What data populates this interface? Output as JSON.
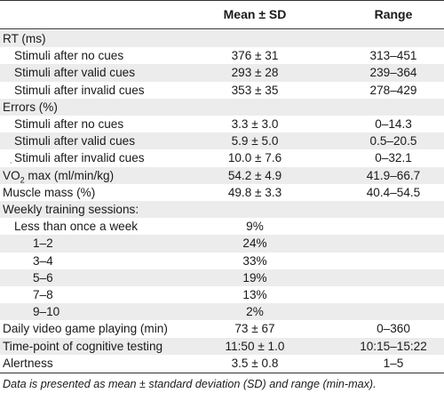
{
  "header": {
    "mean_sd": "Mean ± SD",
    "range": "Range"
  },
  "rows": [
    {
      "label": "RT (ms)",
      "mean": "",
      "range": ""
    },
    {
      "label": "Stimuli after no cues",
      "mean": "376 ± 31",
      "range": "313–451"
    },
    {
      "label": "Stimuli after valid cues",
      "mean": "293 ± 28",
      "range": "239–364"
    },
    {
      "label": "Stimuli after invalid cues",
      "mean": "353 ± 35",
      "range": "278–429"
    },
    {
      "label": "Errors (%)",
      "mean": "",
      "range": ""
    },
    {
      "label": "Stimuli after no cues",
      "mean": "3.3 ± 3.0",
      "range": "0–14.3"
    },
    {
      "label": "Stimuli after valid cues",
      "mean": "5.9 ± 5.0",
      "range": "0.5–20.5"
    },
    {
      "label": "Stimuli after invalid cues",
      "mean": "10.0 ± 7.6",
      "range": "0–32.1"
    },
    {
      "label_prefix": "VO",
      "label_sub": "2",
      "label_suffix": " max (ml/min/kg)",
      "mean": "54.2 ± 4.9",
      "range": "41.9–66.7"
    },
    {
      "label": "Muscle mass (%)",
      "mean": "49.8 ± 3.3",
      "range": "40.4–54.5"
    },
    {
      "label": "Weekly training sessions:",
      "mean": "",
      "range": ""
    },
    {
      "label": "Less than once a week",
      "mean": "9%",
      "range": ""
    },
    {
      "label": "1–2",
      "mean": "24%",
      "range": ""
    },
    {
      "label": "3–4",
      "mean": "33%",
      "range": ""
    },
    {
      "label": "5–6",
      "mean": "19%",
      "range": ""
    },
    {
      "label": "7–8",
      "mean": "13%",
      "range": ""
    },
    {
      "label": "9–10",
      "mean": "2%",
      "range": ""
    },
    {
      "label": "Daily video game playing (min)",
      "mean": "73 ± 67",
      "range": "0–360"
    },
    {
      "label": "Time-point of cognitive testing",
      "mean": "11:50 ± 1.0",
      "range": "10:15–15:22"
    },
    {
      "label": "Alertness",
      "mean": "3.5 ± 0.8",
      "range": "1–5"
    }
  ],
  "footnote": "Data is presented as mean ± standard deviation (SD) and range (min-max).",
  "colors": {
    "shade": "#ececec",
    "rule": "#333333"
  }
}
